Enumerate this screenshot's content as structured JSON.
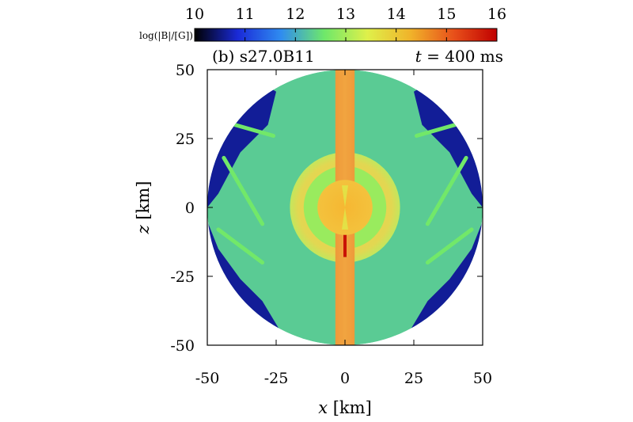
{
  "chart_data": {
    "type": "heatmap",
    "panel_label": "(b) s27.0B11",
    "time_label_var": "t",
    "time_label_eq": " = 400 ms",
    "xlabel_var": "x",
    "xlabel_unit": " [km]",
    "ylabel_var": "z",
    "ylabel_unit": " [km]",
    "xlim": [
      -50,
      50
    ],
    "ylim": [
      -50,
      50
    ],
    "xticks": [
      -50,
      -25,
      0,
      25,
      50
    ],
    "yticks": [
      -50,
      -25,
      0,
      25,
      50
    ],
    "domain_shape": "disk",
    "domain_radius_km": 50,
    "colorbar": {
      "label": "log(|B|/[G])",
      "range": [
        10,
        16
      ],
      "ticks": [
        10,
        11,
        12,
        13,
        14,
        15,
        16
      ],
      "placement": "top",
      "colormap": [
        "#000000",
        "#1a2ad8",
        "#2f8cf0",
        "#6ee86a",
        "#dff04a",
        "#f0b32a",
        "#e8501a",
        "#c00000"
      ]
    },
    "features": {
      "jet_log_field": 14.6,
      "core_radius_km": 10,
      "core_log_field": 14.2,
      "shell_radius_km": 20,
      "shell_log_field": 13.6,
      "ambient_log_field": 12.3,
      "outer_flank_log_field": 10.6
    }
  }
}
